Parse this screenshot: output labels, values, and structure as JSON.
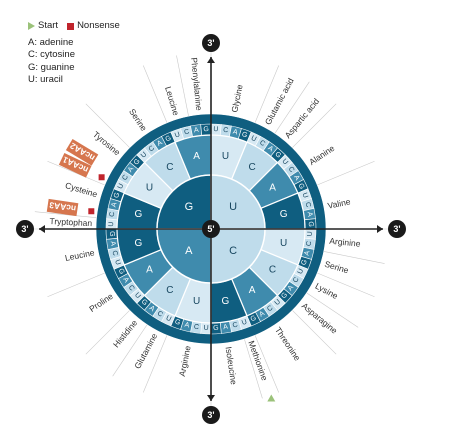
{
  "legend": {
    "start": "Start",
    "nonsense": "Nonsense",
    "bases": [
      "A: adenine",
      "C: cytosine",
      "G: guanine",
      "U: uracil"
    ]
  },
  "colors": {
    "dark": "#0f5e80",
    "mid": "#3f8bad",
    "light": "#bfdceb",
    "lighter": "#d7e9f3",
    "start": "#9bc27a",
    "nonsense": "#c0242c",
    "ncaa": "#d6764e"
  },
  "center_label": "5'",
  "arm_label": "3'",
  "ring1": [
    "G",
    "U",
    "C",
    "A"
  ],
  "ring2": [
    [
      "G",
      "U",
      "C",
      "A"
    ],
    [
      "U",
      "C",
      "A",
      "G"
    ],
    [
      "U",
      "C",
      "A",
      "G"
    ],
    [
      "U",
      "C",
      "A",
      "G"
    ]
  ],
  "ring3": "UCAGUCAGUCAGUCAGUCAGUCAGUCAGUCAGUCAGUCAGUCAGUCAGUCAGUCAGUCAGUCAG",
  "ring3_start_cell": 16,
  "amino_acids": [
    {
      "text": "Glycine",
      "start": 0,
      "count": 4
    },
    {
      "text": "Glutamic acid",
      "start": 4,
      "count": 2
    },
    {
      "text": "Aspartic acid",
      "start": 6,
      "count": 2
    },
    {
      "text": "Alanine",
      "start": 8,
      "count": 4
    },
    {
      "text": "Valine",
      "start": 12,
      "count": 4
    },
    {
      "text": "Arginine",
      "start": 16,
      "count": 2
    },
    {
      "text": "Serine",
      "start": 18,
      "count": 2
    },
    {
      "text": "Lysine",
      "start": 20,
      "count": 2
    },
    {
      "text": "Asparagine",
      "start": 22,
      "count": 2
    },
    {
      "text": "Threonine",
      "start": 24,
      "count": 4
    },
    {
      "text": "Methionine",
      "start": 28,
      "count": 1
    },
    {
      "text": "Isoleucine",
      "start": 29,
      "count": 3
    },
    {
      "text": "Arginine",
      "start": 32,
      "count": 4
    },
    {
      "text": "Glutamine",
      "start": 36,
      "count": 2
    },
    {
      "text": "Histidine",
      "start": 38,
      "count": 2
    },
    {
      "text": "Proline",
      "start": 40,
      "count": 4
    },
    {
      "text": "Leucine",
      "start": 44,
      "count": 4
    },
    {
      "text": "Tryptophan",
      "start": 48,
      "count": 1
    },
    {
      "text": "Cysteine",
      "start": 50,
      "count": 2
    },
    {
      "text": "Tyrosine",
      "start": 54,
      "count": 2
    },
    {
      "text": "Serine",
      "start": 56,
      "count": 4
    },
    {
      "text": "Leucine",
      "start": 60,
      "count": 2
    },
    {
      "text": "Phenylalanine",
      "start": 62,
      "count": 2
    }
  ],
  "ncaa": [
    {
      "text": "ncAA1",
      "cell": 52
    },
    {
      "text": "ncAA2",
      "cell": 53
    },
    {
      "text": "ncAA3",
      "cell": 49
    }
  ],
  "start_markers": [
    28
  ],
  "nonsense_markers": [
    49,
    52
  ]
}
